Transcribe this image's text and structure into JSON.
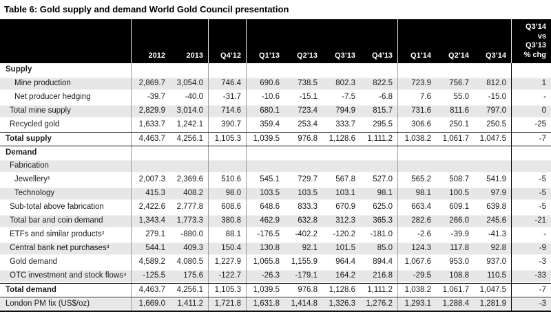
{
  "title": "Table 6: Gold supply and demand World Gold Council presentation",
  "colors": {
    "header_bg": "#000000",
    "header_text": "#ffffff",
    "row_shade": "#e7e7e7",
    "grid_line": "#9a9a9a",
    "strong_line": "#000000",
    "text": "#1a1a1a"
  },
  "table": {
    "column_headers": [
      "",
      "2012",
      "2013",
      "Q4’12",
      "Q1’13",
      "Q2’13",
      "Q3’13",
      "Q4’13",
      "Q1’14",
      "Q2’14",
      "Q3’14",
      "Q3’14\nvs\nQ3’13\n% chg"
    ],
    "rows": [
      {
        "label": "Supply",
        "indent": 0,
        "bold": true,
        "shaded": false,
        "border_top": false,
        "values": [
          "",
          "",
          "",
          "",
          "",
          "",
          "",
          "",
          "",
          "",
          ""
        ]
      },
      {
        "label": "Mine production",
        "indent": 2,
        "bold": false,
        "shaded": true,
        "border_top": false,
        "values": [
          "2,869.7",
          "3,054.0",
          "746.4",
          "690.6",
          "738.5",
          "802.3",
          "822.5",
          "723.9",
          "756.7",
          "812.0",
          "1"
        ]
      },
      {
        "label": "Net producer hedging",
        "indent": 2,
        "bold": false,
        "shaded": false,
        "border_top": false,
        "values": [
          "-39.7",
          "-40.0",
          "-31.7",
          "-10.6",
          "-15.1",
          "-7.5",
          "-6.8",
          "7.6",
          "55.0",
          "-15.0",
          "-"
        ]
      },
      {
        "label": "Total mine supply",
        "indent": 1,
        "bold": false,
        "shaded": true,
        "border_top": false,
        "values": [
          "2,829.9",
          "3,014.0",
          "714.6",
          "680.1",
          "723.4",
          "794.9",
          "815.7",
          "731.6",
          "811.6",
          "797.0",
          "0"
        ]
      },
      {
        "label": "Recycled gold",
        "indent": 1,
        "bold": false,
        "shaded": false,
        "border_top": false,
        "values": [
          "1,633.7",
          "1,242.1",
          "390.7",
          "359.4",
          "253.4",
          "333.7",
          "295.5",
          "306.6",
          "250.1",
          "250.5",
          "-25"
        ]
      },
      {
        "label": "Total supply",
        "indent": 0,
        "bold": true,
        "shaded": false,
        "border_top": true,
        "values": [
          "4,463.7",
          "4,256.1",
          "1,105.3",
          "1,039.5",
          "976.8",
          "1,128.6",
          "1,111.2",
          "1,038.2",
          "1,061.7",
          "1,047.5",
          "-7"
        ]
      },
      {
        "label": "Demand",
        "indent": 0,
        "bold": true,
        "shaded": false,
        "border_top": true,
        "values": [
          "",
          "",
          "",
          "",
          "",
          "",
          "",
          "",
          "",
          "",
          ""
        ]
      },
      {
        "label": "Fabrication",
        "indent": 1,
        "bold": false,
        "shaded": true,
        "border_top": false,
        "values": [
          "",
          "",
          "",
          "",
          "",
          "",
          "",
          "",
          "",
          "",
          ""
        ]
      },
      {
        "label": "Jewellery¹",
        "indent": 2,
        "bold": false,
        "shaded": false,
        "border_top": false,
        "values": [
          "2,007.3",
          "2,369.6",
          "510.6",
          "545.1",
          "729.7",
          "567.8",
          "527.0",
          "565.2",
          "508.7",
          "541.9",
          "-5"
        ]
      },
      {
        "label": "Technology",
        "indent": 2,
        "bold": false,
        "shaded": true,
        "border_top": false,
        "values": [
          "415.3",
          "408.2",
          "98.0",
          "103.5",
          "103.5",
          "103.1",
          "98.1",
          "98.1",
          "100.5",
          "97.9",
          "-5"
        ]
      },
      {
        "label": "Sub-total above fabrication",
        "indent": 1,
        "bold": false,
        "shaded": false,
        "border_top": false,
        "values": [
          "2,422.6",
          "2,777.8",
          "608.6",
          "648.6",
          "833.3",
          "670.9",
          "625.0",
          "663.4",
          "609.1",
          "639.8",
          "-5"
        ]
      },
      {
        "label": "Total bar and coin demand",
        "indent": 1,
        "bold": false,
        "shaded": true,
        "border_top": false,
        "values": [
          "1,343.4",
          "1,773.3",
          "380.8",
          "462.9",
          "632.8",
          "312.3",
          "365.3",
          "282.6",
          "266.0",
          "245.6",
          "-21"
        ]
      },
      {
        "label": "ETFs and similar products²",
        "indent": 1,
        "bold": false,
        "shaded": false,
        "border_top": false,
        "values": [
          "279.1",
          "-880.0",
          "88.1",
          "-176.5",
          "-402.2",
          "-120.2",
          "-181.0",
          "-2.6",
          "-39.9",
          "-41.3",
          "-"
        ]
      },
      {
        "label": "Central bank net purchases³",
        "indent": 1,
        "bold": false,
        "shaded": true,
        "border_top": false,
        "values": [
          "544.1",
          "409.3",
          "150.4",
          "130.8",
          "92.1",
          "101.5",
          "85.0",
          "124.3",
          "117.8",
          "92.8",
          "-9"
        ]
      },
      {
        "label": "Gold demand",
        "indent": 1,
        "bold": false,
        "shaded": false,
        "border_top": false,
        "values": [
          "4,589.2",
          "4,080.5",
          "1,227.9",
          "1,065.8",
          "1,155.9",
          "964.4",
          "894.4",
          "1,067.6",
          "953.0",
          "937.0",
          "-3"
        ]
      },
      {
        "label": "OTC investment and stock flows⁴",
        "indent": 1,
        "bold": false,
        "shaded": true,
        "border_top": false,
        "values": [
          "-125.5",
          "175.6",
          "-122.7",
          "-26.3",
          "-179.1",
          "164.2",
          "216.8",
          "-29.5",
          "108.8",
          "110.5",
          "-33"
        ]
      },
      {
        "label": "Total demand",
        "indent": 0,
        "bold": true,
        "shaded": false,
        "border_top": true,
        "values": [
          "4,463.7",
          "4,256.1",
          "1,105.3",
          "1,039.5",
          "976.8",
          "1,128.6",
          "1,111.2",
          "1,038.2",
          "1,061.7",
          "1,047.5",
          "-7"
        ]
      },
      {
        "label": "London PM fix (US$/oz)",
        "indent": 0,
        "bold": false,
        "shaded": true,
        "border_top": true,
        "values": [
          "1,669.0",
          "1,411.2",
          "1,721.8",
          "1,631.8",
          "1,414.8",
          "1,326.3",
          "1,276.2",
          "1,293.1",
          "1,288.4",
          "1,281.9",
          "-3"
        ]
      }
    ]
  }
}
